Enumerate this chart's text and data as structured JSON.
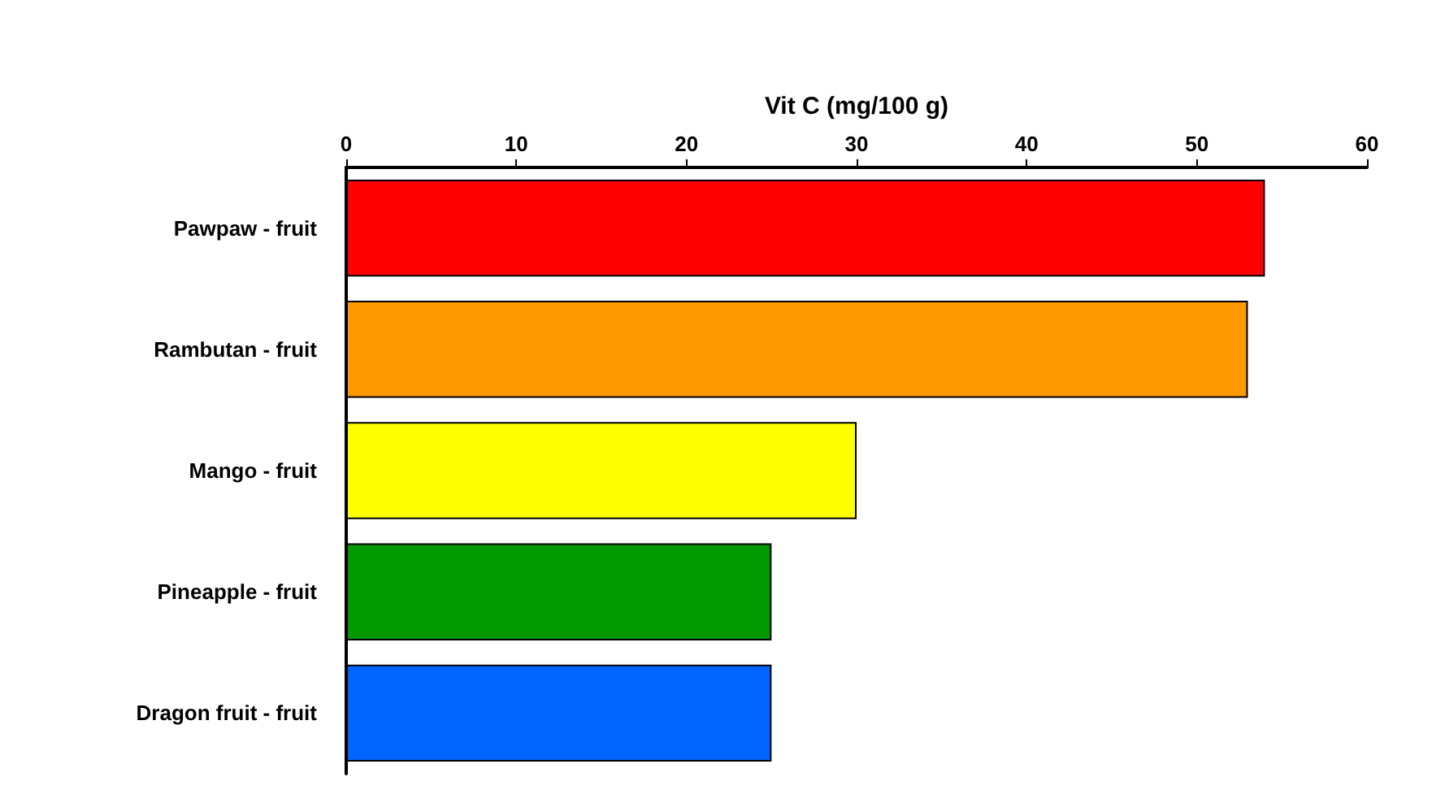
{
  "chart_data": {
    "type": "bar",
    "orientation": "horizontal",
    "xlabel": "Vit C (mg/100 g)",
    "categories": [
      "Pawpaw - fruit",
      "Rambutan - fruit",
      "Mango - fruit",
      "Pineapple - fruit",
      "Dragon fruit - fruit"
    ],
    "values": [
      54,
      53,
      30,
      25,
      25
    ],
    "colors": [
      "#ff0000",
      "#ff9900",
      "#ffff00",
      "#009900",
      "#0066ff"
    ],
    "xlim": [
      0,
      60
    ],
    "xticks": [
      0,
      10,
      20,
      30,
      40,
      50,
      60
    ],
    "grid": false
  }
}
